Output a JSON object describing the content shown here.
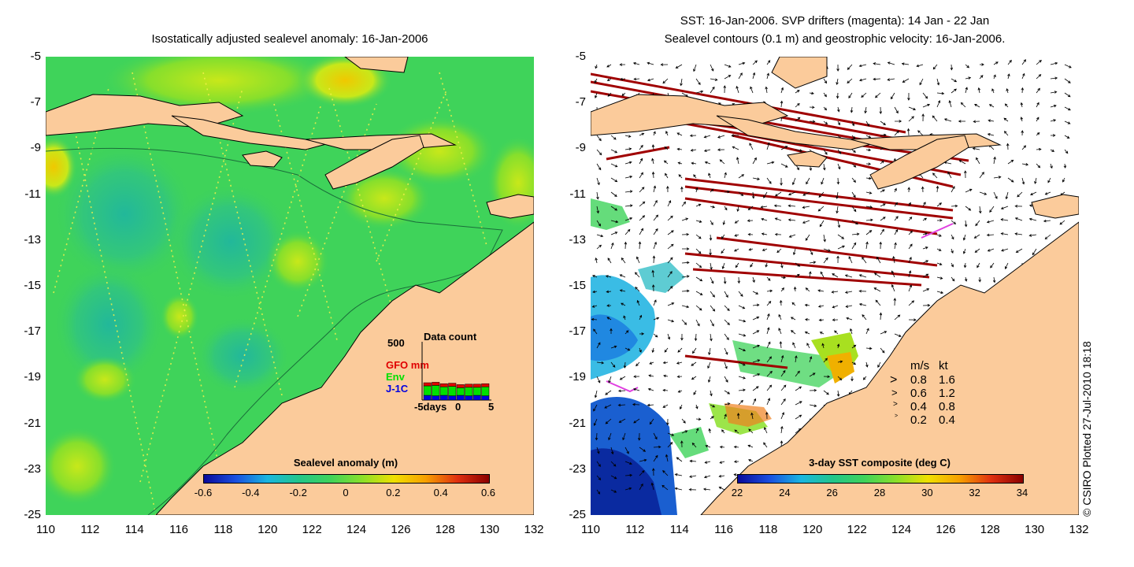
{
  "left_panel": {
    "title": "Isostatically adjusted sealevel anomaly: 16-Jan-2006",
    "colorbar_label": "Sealevel anomaly (m)",
    "colorbar_ticks": [
      "-0.6",
      "-0.4",
      "-0.2",
      "0",
      "0.2",
      "0.4",
      "0.6"
    ],
    "data_count": {
      "title": "Data count",
      "ymax_label": "500",
      "legend": [
        {
          "label": "GFO mm",
          "color": "#e00000"
        },
        {
          "label": "Env",
          "color": "#00e000"
        },
        {
          "label": "J-1C",
          "color": "#0000e0"
        }
      ],
      "x_labels": [
        "-5days",
        "0",
        "5"
      ]
    }
  },
  "right_panel": {
    "title_line1": "SST: 16-Jan-2006. SVP drifters (magenta): 14 Jan - 22 Jan",
    "title_line2": "Sealevel contours (0.1 m) and geostrophic velocity: 16-Jan-2006.",
    "colorbar_label": "3-day SST composite (deg C)",
    "colorbar_ticks": [
      "22",
      "24",
      "26",
      "28",
      "30",
      "32",
      "34"
    ],
    "speed_legend": {
      "header_ms": "m/s",
      "header_kt": "kt",
      "rows": [
        {
          "ms": "0.8",
          "kt": "1.6"
        },
        {
          "ms": "0.6",
          "kt": "1.2"
        },
        {
          "ms": "0.4",
          "kt": "0.8"
        },
        {
          "ms": "0.2",
          "kt": "0.4"
        }
      ]
    }
  },
  "axes": {
    "y_ticks": [
      "-5",
      "-7",
      "-9",
      "-11",
      "-13",
      "-15",
      "-17",
      "-19",
      "-21",
      "-23",
      "-25"
    ],
    "x_ticks": [
      "110",
      "112",
      "114",
      "116",
      "118",
      "120",
      "122",
      "124",
      "126",
      "128",
      "130",
      "132"
    ]
  },
  "credit": "© CSIRO Plotted 27-Jul-2010 18:18",
  "colors": {
    "land": "#fbcb9b",
    "ocean_anomaly": "#3fd35a",
    "cloud_white": "#ffffff",
    "track_red": "#a00000"
  }
}
